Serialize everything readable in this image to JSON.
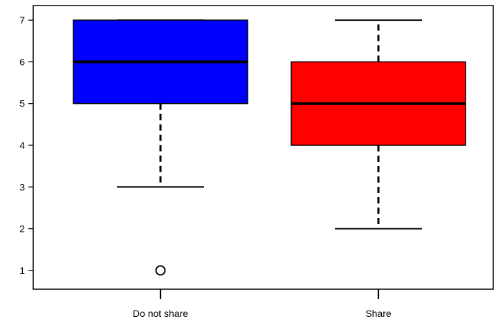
{
  "chart_data": {
    "type": "boxplot",
    "title": "",
    "xlabel": "",
    "ylabel": "",
    "ylim": [
      0.55,
      7.35
    ],
    "yticks": [
      1,
      2,
      3,
      4,
      5,
      6,
      7
    ],
    "grid": false,
    "legend": "none",
    "categories": [
      "Do not share",
      "Share"
    ],
    "series": [
      {
        "min": 3,
        "q1": 5,
        "median": 6,
        "q3": 7,
        "max": 7,
        "outliers": [
          1
        ],
        "color": "#0000ff"
      },
      {
        "min": 2,
        "q1": 4,
        "median": 5,
        "q3": 6,
        "max": 7,
        "outliers": [],
        "color": "#ff0000"
      }
    ]
  }
}
